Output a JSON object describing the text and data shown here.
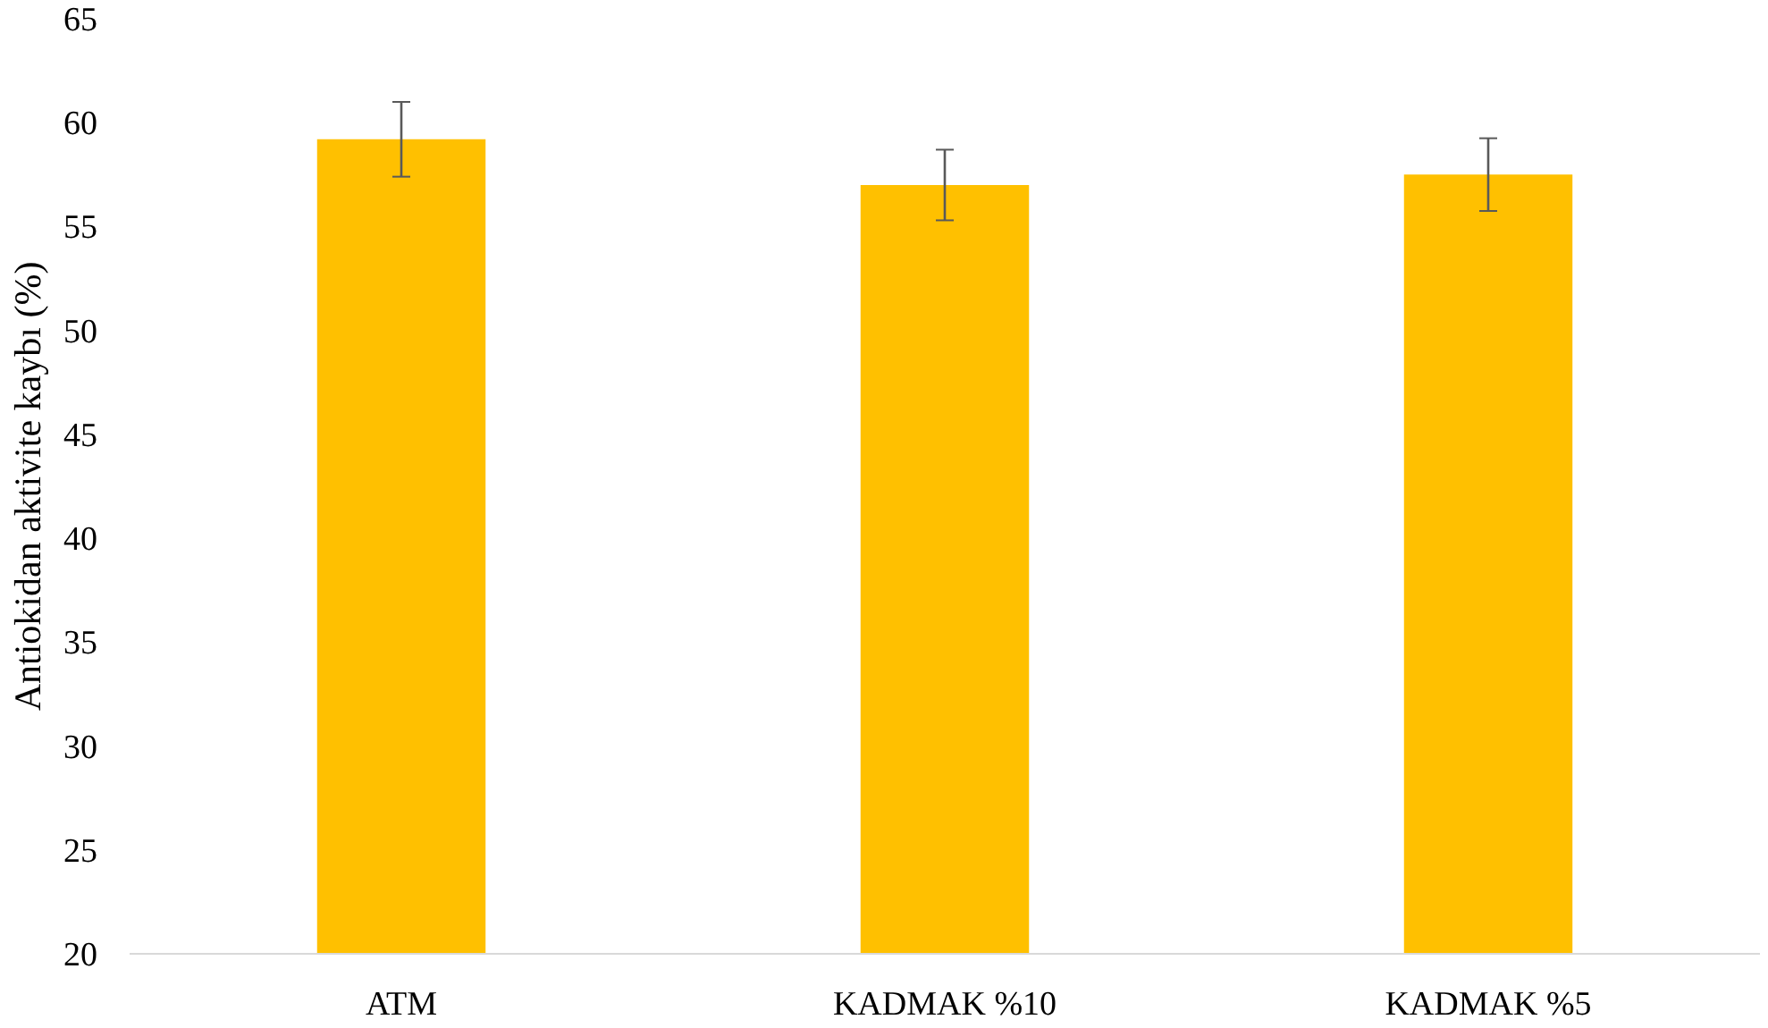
{
  "chart_data": {
    "type": "bar",
    "ylabel": "Antiokidan aktivite kaybı (%)",
    "categories": [
      "ATM",
      "KADMAK %10",
      "KADMAK %5"
    ],
    "values": [
      59.2,
      57.0,
      57.5
    ],
    "errors": [
      1.8,
      1.7,
      1.75
    ],
    "color": "#ffc000",
    "ylim": [
      20,
      65
    ],
    "yticks": [
      20,
      25,
      30,
      35,
      40,
      45,
      50,
      55,
      60,
      65
    ],
    "grid": false
  }
}
